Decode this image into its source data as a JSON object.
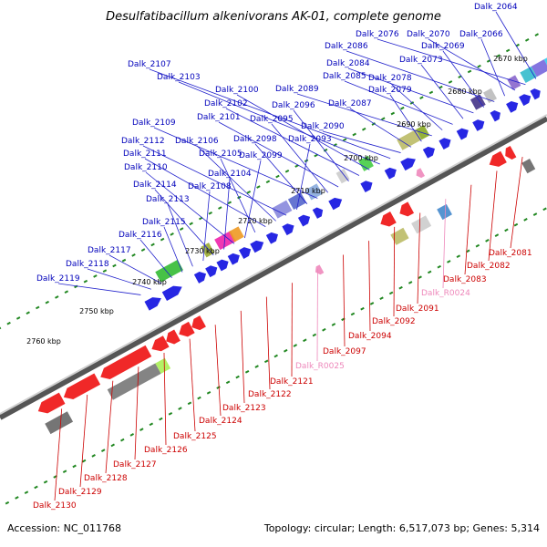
{
  "title": "Desulfatibacillum alkenivorans AK-01, complete genome",
  "footer": {
    "accession": "Accession: NC_011768",
    "summary": "Topology: circular; Length: 6,517,073 bp; Genes: 5,314"
  },
  "colors": {
    "forward": "#1010e0",
    "reverse": "#ee1111",
    "rna": "#ee88bb",
    "backbone": "#777777",
    "ticks": "#228822"
  },
  "kbp_labels": [
    {
      "text": "2670 kbp"
    },
    {
      "text": "2680 kbp"
    },
    {
      "text": "2690 kbp"
    },
    {
      "text": "2700 kbp"
    },
    {
      "text": "2710 kbp"
    },
    {
      "text": "2720 kbp"
    },
    {
      "text": "2730 kbp"
    },
    {
      "text": "2740 kbp"
    },
    {
      "text": "2750 kbp"
    },
    {
      "text": "2760 kbp"
    }
  ],
  "top_genes": [
    "Dalk_2064",
    "Dalk_2076",
    "Dalk_2070",
    "Dalk_2066",
    "Dalk_2086",
    "Dalk_2069",
    "Dalk_2084",
    "Dalk_2073",
    "Dalk_2085",
    "Dalk_2078",
    "Dalk_2089",
    "Dalk_2079",
    "Dalk_2087",
    "Dalk_2090",
    "Dalk_2107",
    "Dalk_2103",
    "Dalk_2100",
    "Dalk_2102",
    "Dalk_2096",
    "Dalk_2101",
    "Dalk_2095",
    "Dalk_2109",
    "Dalk_2098",
    "Dalk_2093",
    "Dalk_2112",
    "Dalk_2106",
    "Dalk_2111",
    "Dalk_2105",
    "Dalk_2099",
    "Dalk_2110",
    "Dalk_2104",
    "Dalk_2114",
    "Dalk_2108",
    "Dalk_2113",
    "Dalk_2115",
    "Dalk_2116",
    "Dalk_2117",
    "Dalk_2118",
    "Dalk_2119"
  ],
  "bottom_genes": [
    "Dalk_2081",
    "Dalk_2082",
    "Dalk_2083",
    "Dalk_R0024",
    "Dalk_2091",
    "Dalk_2092",
    "Dalk_2094",
    "Dalk_2097",
    "Dalk_R0025",
    "Dalk_2121",
    "Dalk_2122",
    "Dalk_2123",
    "Dalk_2124",
    "Dalk_2125",
    "Dalk_2126",
    "Dalk_2127",
    "Dalk_2128",
    "Dalk_2129",
    "Dalk_2130"
  ],
  "rna_genes": [
    "Dalk_R0024",
    "Dalk_R0025"
  ]
}
